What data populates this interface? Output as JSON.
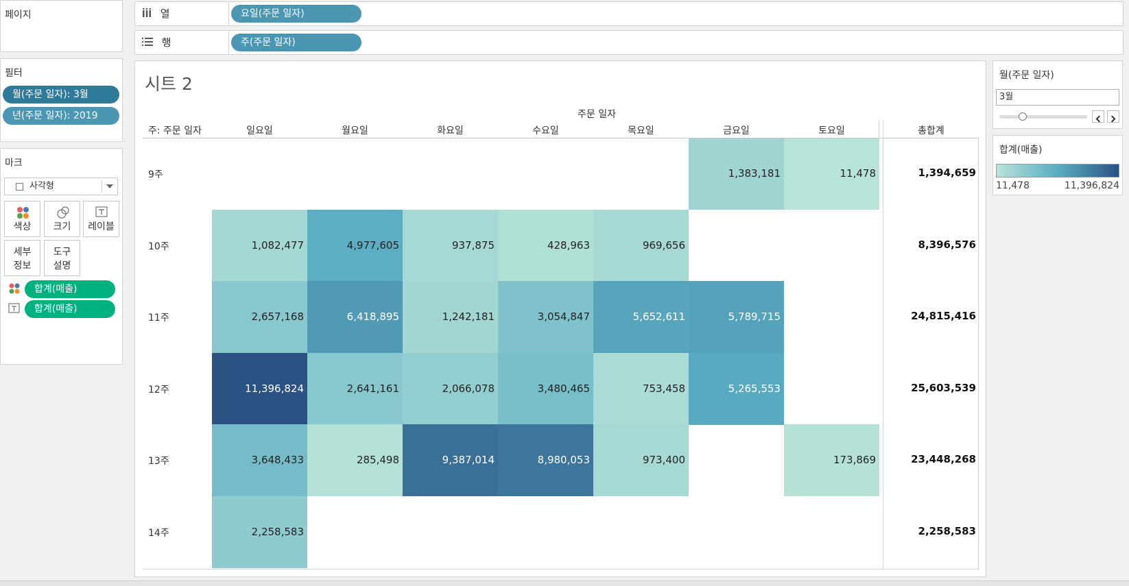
{
  "left": {
    "pages_title": "페이지",
    "filters_title": "필터",
    "filters": [
      "월(주문 일자): 3월",
      "년(주문 일자): 2019"
    ],
    "marks_title": "마크",
    "mark_type": "사각형",
    "mark_buttons": {
      "color": "색상",
      "size": "크기",
      "label": "레이블",
      "detail_1": "세부",
      "detail_2": "정보",
      "tooltip_1": "도구",
      "tooltip_2": "설명"
    },
    "mark_fields": [
      "합계(매출)",
      "합계(매출)"
    ]
  },
  "shelves": {
    "columns_label": "열",
    "columns_pill": "요일(주문 일자)",
    "rows_label": "행",
    "rows_pill": "주(주문 일자)"
  },
  "sheet": {
    "title": "시트 2",
    "col_group_header": "주문 일자",
    "row_field_header": "주: 주문 일자",
    "total_header": "총합계"
  },
  "right": {
    "month_filter_title": "월(주문 일자)",
    "month_filter_value": "3월",
    "legend_title": "합계(매출)",
    "legend_min": "11,478",
    "legend_max": "11,396,824"
  },
  "chart_data": {
    "type": "heatmap",
    "days": [
      "일요일",
      "월요일",
      "화요일",
      "수요일",
      "목요일",
      "금요일",
      "토요일"
    ],
    "weeks": [
      "9주",
      "10주",
      "11주",
      "12주",
      "13주",
      "14주"
    ],
    "values": [
      [
        null,
        null,
        null,
        null,
        null,
        1383181,
        11478
      ],
      [
        1082477,
        4977605,
        937875,
        428963,
        969656,
        null,
        null
      ],
      [
        2657168,
        6418895,
        1242181,
        3054847,
        5652611,
        5789715,
        null
      ],
      [
        11396824,
        2641161,
        2066078,
        3480465,
        753458,
        5265553,
        null
      ],
      [
        3648433,
        285498,
        9387014,
        8980053,
        973400,
        null,
        173869
      ],
      [
        2258583,
        null,
        null,
        null,
        null,
        null,
        null
      ]
    ],
    "row_totals": [
      1394659,
      8396576,
      24815416,
      25603539,
      23448268,
      2258583
    ],
    "color_min": 11478,
    "color_max": 11396824,
    "color_low": "#b8e3d8",
    "color_high": "#2b5283"
  }
}
